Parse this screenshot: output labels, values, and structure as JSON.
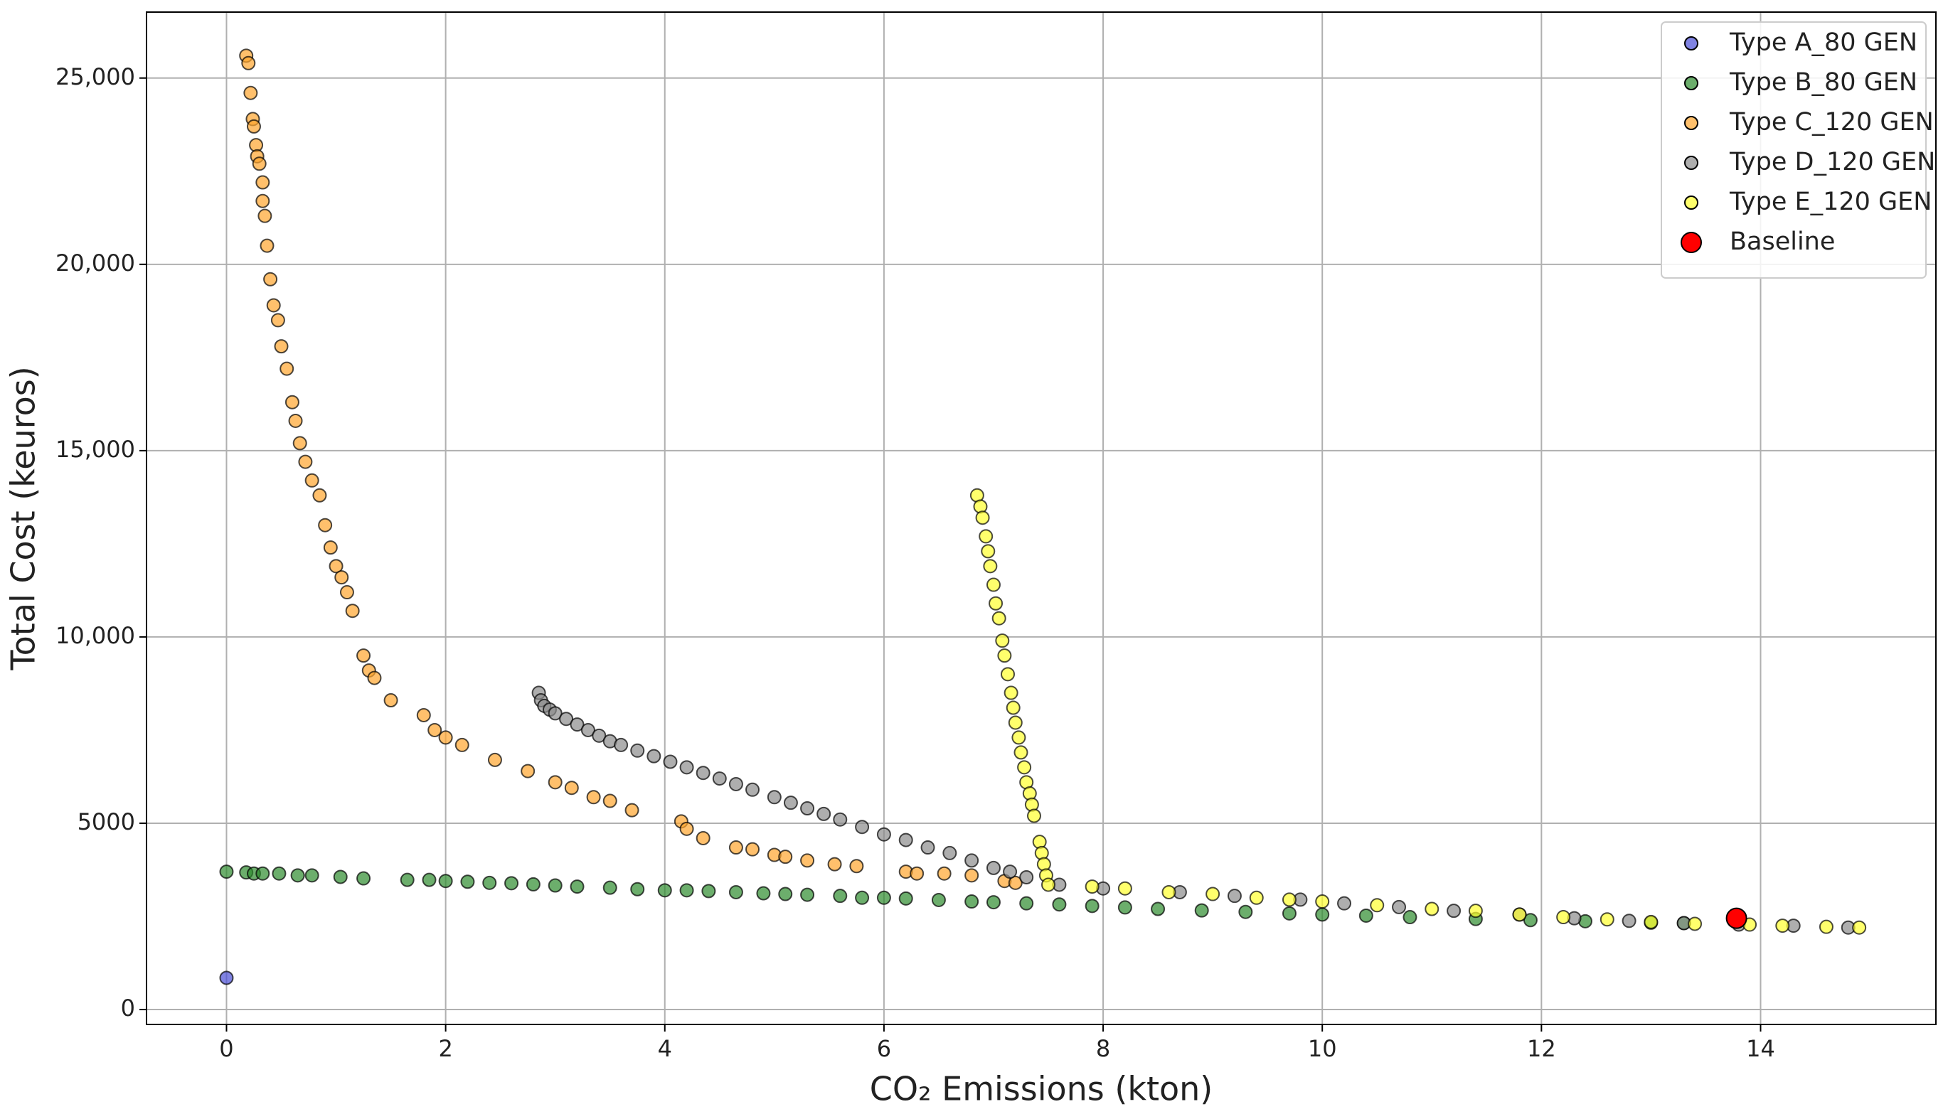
{
  "chart_data": {
    "type": "scatter",
    "xlabel": "CO₂ Emissions (kton)",
    "ylabel": "Total Cost (keuros)",
    "xlim": [
      -0.73,
      15.6
    ],
    "ylim": [
      -400,
      26770
    ],
    "xticks": [
      0,
      2,
      4,
      6,
      8,
      10,
      12,
      14
    ],
    "yticks": [
      0,
      5000,
      {
        "value": 10000,
        "label": "10,000"
      },
      {
        "value": 15000,
        "label": "15,000"
      },
      {
        "value": 20000,
        "label": "20,000"
      },
      {
        "value": 25000,
        "label": "25,000"
      }
    ],
    "grid": true,
    "legend": "upper right",
    "series": [
      {
        "name": "Type A_80 GEN",
        "color": "#4a4fd6",
        "x": [
          0
        ],
        "values": [
          850
        ]
      },
      {
        "name": "Type B_80 GEN",
        "color": "#2e8b2e",
        "x": [
          0,
          0.18,
          0.25,
          0.33,
          0.48,
          0.65,
          0.78,
          1.04,
          1.25,
          1.65,
          1.85,
          2.0,
          2.2,
          2.4,
          2.6,
          2.8,
          3.0,
          3.2,
          3.5,
          3.75,
          4.0,
          4.2,
          4.4,
          4.65,
          4.9,
          5.1,
          5.3,
          5.6,
          5.8,
          6.0,
          6.2,
          6.5,
          6.8,
          7.0,
          7.3,
          7.6,
          7.9,
          8.2,
          8.5,
          8.9,
          9.3,
          9.7,
          10.0,
          10.4,
          10.8,
          11.4,
          11.9,
          12.4,
          13.0,
          13.3
        ],
        "values": [
          3700,
          3680,
          3650,
          3650,
          3650,
          3600,
          3600,
          3560,
          3520,
          3480,
          3480,
          3450,
          3430,
          3400,
          3390,
          3360,
          3330,
          3300,
          3270,
          3230,
          3200,
          3200,
          3180,
          3150,
          3120,
          3100,
          3080,
          3050,
          3000,
          3000,
          2980,
          2940,
          2900,
          2880,
          2850,
          2820,
          2780,
          2740,
          2700,
          2660,
          2620,
          2580,
          2550,
          2520,
          2480,
          2430,
          2400,
          2370,
          2330,
          2320
        ]
      },
      {
        "name": "Type C_120 GEN",
        "color": "#ffa52e",
        "x": [
          0.18,
          0.2,
          0.22,
          0.24,
          0.25,
          0.27,
          0.28,
          0.3,
          0.33,
          0.33,
          0.35,
          0.37,
          0.4,
          0.43,
          0.47,
          0.5,
          0.55,
          0.6,
          0.63,
          0.67,
          0.72,
          0.78,
          0.85,
          0.9,
          0.95,
          1.0,
          1.05,
          1.1,
          1.15,
          1.25,
          1.3,
          1.35,
          1.5,
          1.8,
          1.9,
          2.0,
          2.15,
          2.45,
          2.75,
          3.0,
          3.15,
          3.35,
          3.5,
          3.7,
          4.15,
          4.2,
          4.35,
          4.65,
          4.8,
          5.0,
          5.1,
          5.3,
          5.55,
          5.75,
          6.2,
          6.3,
          6.55,
          6.8,
          7.1,
          7.2
        ],
        "values": [
          25600,
          25400,
          24600,
          23900,
          23700,
          23200,
          22900,
          22700,
          22200,
          21700,
          21300,
          20500,
          19600,
          18900,
          18500,
          17800,
          17200,
          16300,
          15800,
          15200,
          14700,
          14200,
          13800,
          13000,
          12400,
          11900,
          11600,
          11200,
          10700,
          9500,
          9100,
          8900,
          8300,
          7900,
          7500,
          7300,
          7100,
          6700,
          6400,
          6100,
          5950,
          5700,
          5600,
          5350,
          5050,
          4850,
          4600,
          4350,
          4300,
          4150,
          4100,
          4000,
          3900,
          3850,
          3700,
          3650,
          3650,
          3600,
          3450,
          3400
        ]
      },
      {
        "name": "Type D_120 GEN",
        "color": "#8c8c8c",
        "x": [
          2.85,
          2.87,
          2.9,
          2.95,
          3.0,
          3.1,
          3.2,
          3.3,
          3.4,
          3.5,
          3.6,
          3.75,
          3.9,
          4.05,
          4.2,
          4.35,
          4.5,
          4.65,
          4.8,
          5.0,
          5.15,
          5.3,
          5.45,
          5.6,
          5.8,
          6.0,
          6.2,
          6.4,
          6.6,
          6.8,
          7.0,
          7.15,
          7.3,
          7.6,
          8.0,
          8.7,
          9.2,
          9.8,
          10.2,
          10.7,
          11.2,
          11.8,
          12.3,
          12.8,
          13.3,
          13.8,
          14.3,
          14.8
        ],
        "values": [
          8500,
          8300,
          8150,
          8050,
          7950,
          7800,
          7650,
          7500,
          7350,
          7200,
          7100,
          6950,
          6800,
          6650,
          6500,
          6350,
          6200,
          6050,
          5900,
          5700,
          5550,
          5400,
          5250,
          5100,
          4900,
          4700,
          4550,
          4350,
          4200,
          4000,
          3800,
          3700,
          3550,
          3350,
          3250,
          3150,
          3050,
          2950,
          2850,
          2750,
          2650,
          2550,
          2450,
          2380,
          2320,
          2280,
          2250,
          2200
        ]
      },
      {
        "name": "Type E_120 GEN",
        "color": "#ffff2e",
        "x": [
          6.85,
          6.88,
          6.9,
          6.93,
          6.95,
          6.97,
          7.0,
          7.02,
          7.05,
          7.08,
          7.1,
          7.13,
          7.16,
          7.18,
          7.2,
          7.23,
          7.25,
          7.28,
          7.3,
          7.33,
          7.35,
          7.37,
          7.42,
          7.44,
          7.46,
          7.48,
          7.5,
          7.9,
          8.2,
          8.6,
          9.0,
          9.4,
          9.7,
          10.0,
          10.5,
          11.0,
          11.4,
          11.8,
          12.2,
          12.6,
          13.0,
          13.4,
          13.9,
          14.2,
          14.6,
          14.9
        ],
        "values": [
          13800,
          13500,
          13200,
          12700,
          12300,
          11900,
          11400,
          10900,
          10500,
          9900,
          9500,
          9000,
          8500,
          8100,
          7700,
          7300,
          6900,
          6500,
          6100,
          5800,
          5500,
          5200,
          4500,
          4200,
          3900,
          3600,
          3350,
          3300,
          3250,
          3150,
          3100,
          3000,
          2950,
          2900,
          2800,
          2700,
          2650,
          2550,
          2480,
          2420,
          2350,
          2300,
          2280,
          2250,
          2220,
          2200
        ]
      },
      {
        "name": "Baseline",
        "color": "#ff0000",
        "x": [
          13.78
        ],
        "values": [
          2450
        ]
      }
    ]
  }
}
